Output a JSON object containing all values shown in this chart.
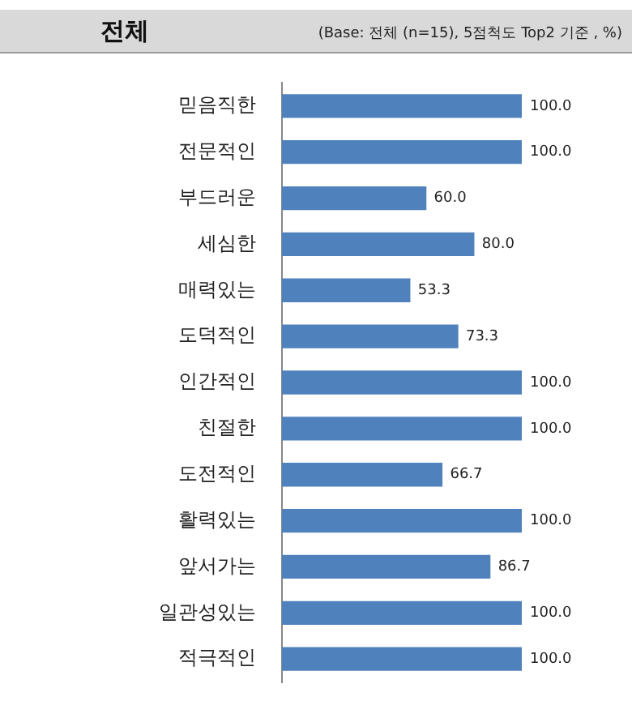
{
  "chart_data": {
    "type": "bar",
    "orientation": "horizontal",
    "title": "전체",
    "subtitle": "(Base: 전체 (n=15), 5점척도 Top2 기준 , %)",
    "categories": [
      "믿음직한",
      "전문적인",
      "부드러운",
      "세심한",
      "매력있는",
      "도덕적인",
      "인간적인",
      "친절한",
      "도전적인",
      "활력있는",
      "앞서가는",
      "일관성있는",
      "적극적인"
    ],
    "values": [
      100.0,
      100.0,
      60.0,
      80.0,
      53.3,
      73.3,
      100.0,
      100.0,
      66.7,
      100.0,
      86.7,
      100.0,
      100.0
    ],
    "value_labels": [
      "100.0",
      "100.0",
      "60.0",
      "80.0",
      "53.3",
      "73.3",
      "100.0",
      "100.0",
      "66.7",
      "100.0",
      "86.7",
      "100.0",
      "100.0"
    ],
    "color": "#4f81bd",
    "xlim": [
      0,
      100
    ],
    "grid": false,
    "legend": false
  }
}
